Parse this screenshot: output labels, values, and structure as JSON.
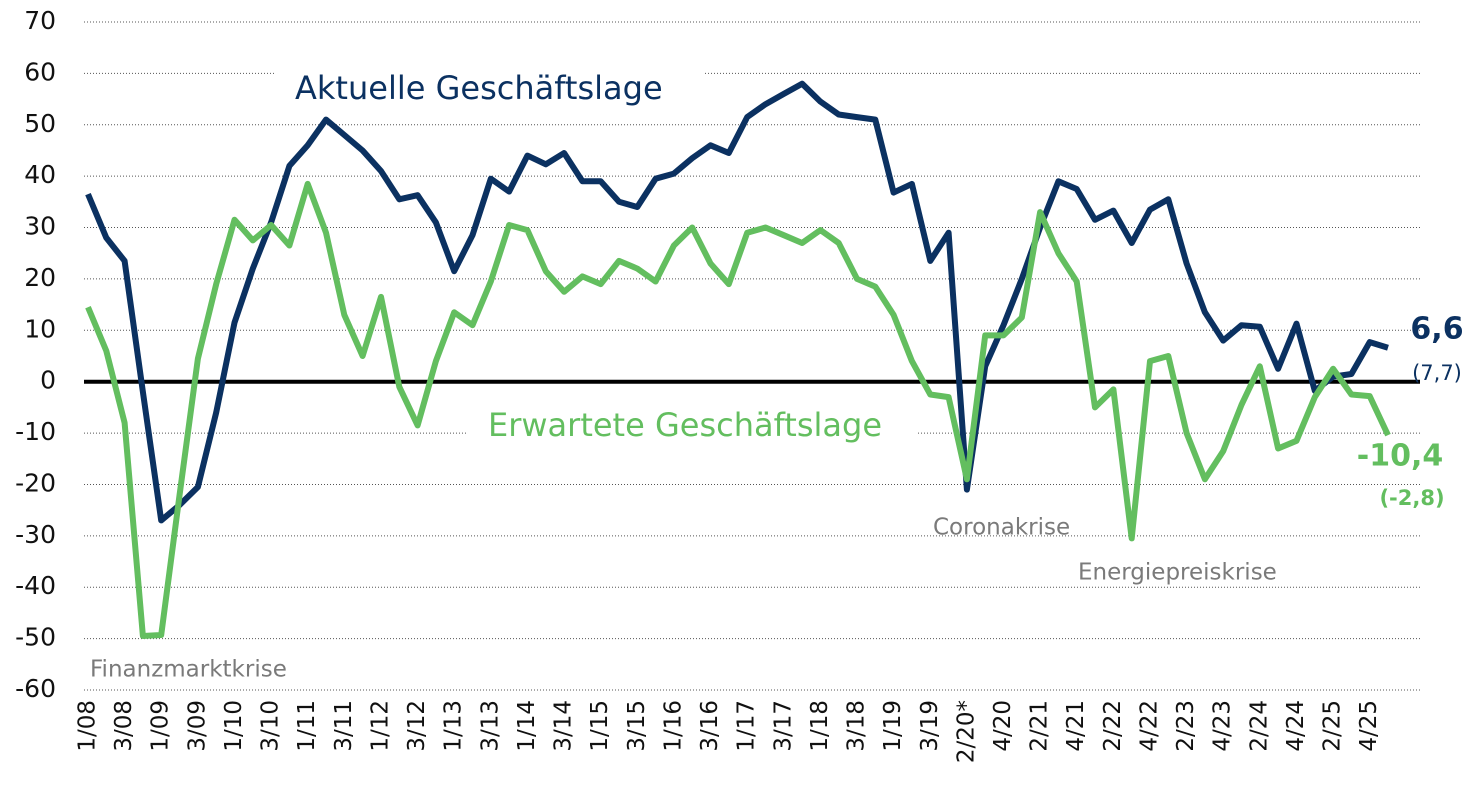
{
  "chart_data": {
    "type": "line",
    "categories": [
      "1/08",
      null,
      "3/08",
      null,
      "1/09",
      null,
      "3/09",
      null,
      "1/10",
      null,
      "3/10",
      null,
      "1/11",
      null,
      "3/11",
      null,
      "1/12",
      null,
      "3/12",
      null,
      "1/13",
      null,
      "3/13",
      null,
      "1/14",
      null,
      "3/14",
      null,
      "1/15",
      null,
      "3/15",
      null,
      "1/16",
      null,
      "3/16",
      null,
      "1/17",
      null,
      "3/17",
      null,
      "1/18",
      null,
      "3/18",
      null,
      "1/19",
      null,
      "3/19",
      null,
      "2/20*",
      null,
      "4/20",
      null,
      "2/21",
      null,
      "4/21",
      null,
      "2/22",
      null,
      "4/22",
      null,
      "2/23",
      null,
      "4/23",
      null,
      "2/24",
      null,
      "4/24",
      null,
      "2/25",
      null,
      "4/25",
      null
    ],
    "series": [
      {
        "name": "Aktuelle Geschäftslage",
        "color": "#0b3161",
        "values": [
          36.5,
          28,
          23.5,
          -2,
          -27,
          -24,
          -20.5,
          -6,
          11.5,
          22,
          31,
          42,
          46,
          51,
          48,
          45,
          41,
          35.5,
          36.3,
          31,
          21.5,
          28.5,
          39.5,
          37,
          44,
          42.3,
          44.5,
          39,
          39,
          35,
          34,
          39.5,
          40.5,
          43.5,
          46,
          44.5,
          51.5,
          54,
          56,
          58,
          54.5,
          52,
          51.5,
          51,
          36.8,
          38.5,
          23.5,
          29,
          -21,
          3,
          11,
          20,
          30,
          39,
          37.5,
          31.5,
          33.3,
          27,
          33.5,
          35.5,
          23,
          13.5,
          8,
          11,
          10.7,
          2.5,
          11.3,
          -1.8,
          1,
          1.5,
          7.7,
          6.6
        ],
        "value_labels": [
          null,
          null,
          null,
          null,
          null,
          null,
          null,
          null,
          null,
          null,
          null,
          null,
          null,
          null,
          null,
          null,
          null,
          null,
          null,
          null,
          null,
          null,
          null,
          null,
          null,
          null,
          null,
          null,
          null,
          null,
          null,
          null,
          null,
          null,
          null,
          null,
          null,
          null,
          null,
          null,
          null,
          null,
          null,
          null,
          null,
          null,
          null,
          null,
          null,
          null,
          null,
          null,
          null,
          null,
          null,
          null,
          null,
          null,
          null,
          null,
          null,
          null,
          null,
          null,
          null,
          null,
          null,
          null,
          null,
          null,
          "(7,7)",
          "6,6"
        ]
      },
      {
        "name": "Erwartete Geschäftslage",
        "color": "#63be5f",
        "values": [
          14.5,
          6,
          -8,
          -49.5,
          -49.3,
          -22,
          4.5,
          19,
          31.5,
          27.5,
          30.5,
          26.5,
          38.5,
          29,
          13,
          5,
          16.5,
          -1,
          -8.5,
          4,
          13.5,
          11,
          19.5,
          30.5,
          29.5,
          21.5,
          17.5,
          20.5,
          19,
          23.5,
          22,
          19.5,
          26.5,
          30,
          23,
          19,
          29,
          30,
          28.5,
          27,
          29.5,
          27,
          20,
          18.5,
          13,
          4,
          -2.5,
          -3,
          -19,
          9,
          9,
          12.5,
          33,
          25,
          19.5,
          -5,
          -1.5,
          -30.5,
          4,
          5,
          -10,
          -19,
          -13.5,
          -4.5,
          3,
          -13,
          -11.5,
          -3,
          2.5,
          -2.5,
          -2.8,
          -10.4
        ],
        "value_labels": [
          null,
          null,
          null,
          null,
          null,
          null,
          null,
          null,
          null,
          null,
          null,
          null,
          null,
          null,
          null,
          null,
          null,
          null,
          null,
          null,
          null,
          null,
          null,
          null,
          null,
          null,
          null,
          null,
          null,
          null,
          null,
          null,
          null,
          null,
          null,
          null,
          null,
          null,
          null,
          null,
          null,
          null,
          null,
          null,
          null,
          null,
          null,
          null,
          null,
          null,
          null,
          null,
          null,
          null,
          null,
          null,
          null,
          null,
          null,
          null,
          null,
          null,
          null,
          null,
          null,
          null,
          null,
          null,
          null,
          null,
          "(-2,8)",
          "-10,4"
        ]
      }
    ],
    "annotations": [
      "Finanzmarktkrise",
      "Coronakrise",
      "Energiepreiskrise"
    ],
    "ylim": [
      -60,
      70
    ],
    "yticks": [
      -60,
      -50,
      -40,
      -30,
      -20,
      -10,
      0,
      10,
      20,
      30,
      40,
      50,
      60,
      70
    ],
    "grid": true
  }
}
